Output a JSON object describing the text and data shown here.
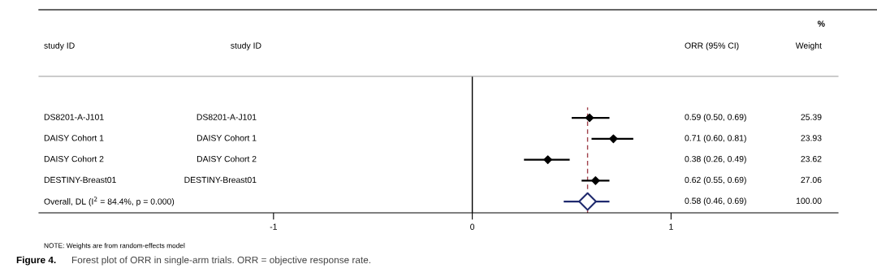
{
  "chart_data": {
    "type": "scatter",
    "orientation": "horizontal",
    "categories": [
      "DS8201-A-J101",
      "DAISY Cohort 1",
      "DAISY Cohort 2",
      "DESTINY-Breast01",
      "Overall, DL (I$^{2}$ = 84.4%, p = 0.000)"
    ],
    "series": [
      {
        "color": "#000000",
        "values": [
          0.59,
          0.71,
          0.38,
          0.62,
          null
        ],
        "errors": [
          [
            0.5,
            0.69
          ],
          [
            0.6,
            0.81
          ],
          [
            0.26,
            0.49
          ],
          [
            0.55,
            0.69
          ],
          null
        ]
      },
      {
        "marker": "diamond",
        "color": "#1f2a6e",
        "values": [
          null,
          null,
          null,
          null,
          0.58
        ],
        "errors": [
          null,
          null,
          null,
          null,
          [
            0.46,
            0.69
          ]
        ]
      }
    ],
    "xlim": [
      -2.18,
      1.84
    ],
    "xticks": [
      -1,
      0,
      1
    ],
    "ref_lines": [
      {
        "axis": "x",
        "value": 0,
        "color": "#000000",
        "line_style": "solid"
      },
      {
        "axis": "x",
        "value": 0.58,
        "color": "#a0404a",
        "line_style": "dashed"
      }
    ],
    "grid": false,
    "legend": false,
    "marker": "diamond",
    "annotations": [
      "study ID",
      "study ID",
      "ORR (95% CI)",
      "%",
      "Weight",
      "DS8201-A-J101",
      "DAISY Cohort 1",
      "DAISY Cohort 2",
      "DESTINY-Breast01",
      "25.39",
      "23.93",
      "23.62",
      "27.06",
      "100.00",
      "0.59 (0.50, 0.69)",
      "0.71 (0.60, 0.81)",
      "0.38 (0.26, 0.49)",
      "0.62 (0.55, 0.69)",
      "0.58 (0.46, 0.69)",
      "NOTE: Weights are from random-effects model",
      "Figure 4.",
      "Forest plot of ORR in single-arm trials. ORR = objective response rate."
    ]
  }
}
